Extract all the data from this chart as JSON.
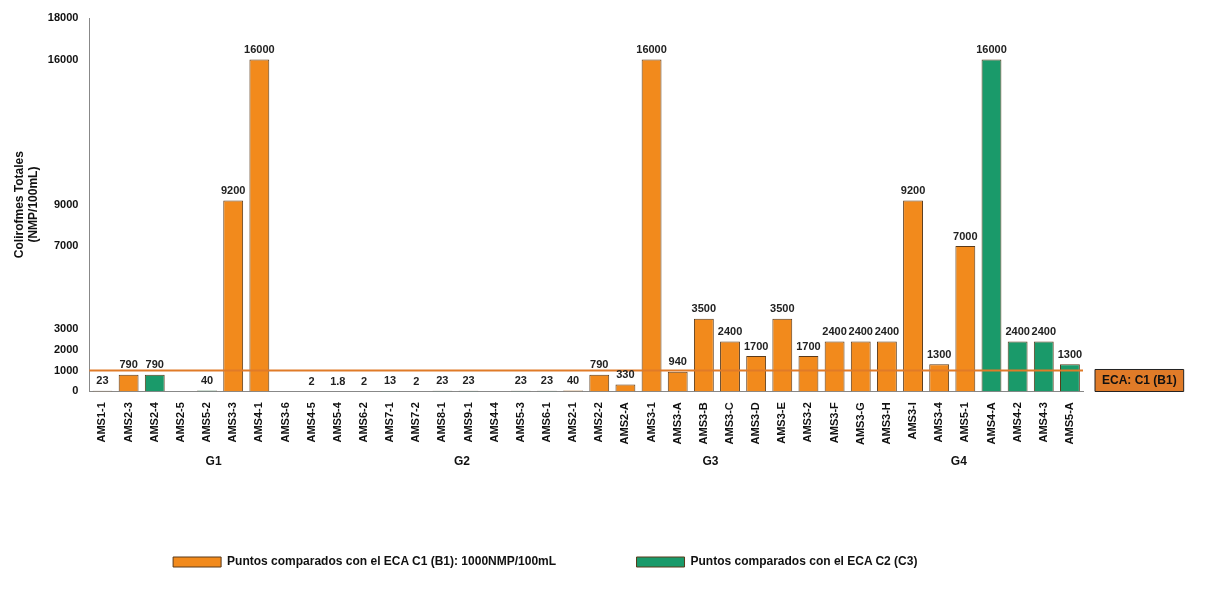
{
  "chart_data": {
    "type": "bar",
    "ylabel": "Colirofmes Totales\n(NMP/100mL)",
    "categories": [
      "AMS1-1",
      "AMS2-3",
      "AMS2-4",
      "AMS2-5",
      "AMS5-2",
      "AMS3-3",
      "AMS4-1",
      "AMS3-6",
      "AMS4-5",
      "AMS5-4",
      "AMS6-2",
      "AMS7-1",
      "AMS7-2",
      "AMS8-1",
      "AMS9-1",
      "AMS4-4",
      "AMS5-3",
      "AMS6-1",
      "AMS2-1",
      "AMS2-2",
      "AMS2-A",
      "AMS3-1",
      "AMS3-A",
      "AMS3-B",
      "AMS3-C",
      "AMS3-D",
      "AMS3-E",
      "AMS3-2",
      "AMS3-F",
      "AMS3-G",
      "AMS3-H",
      "AMS3-I",
      "AMS3-4",
      "AMS5-1",
      "AMS4-A",
      "AMS4-2",
      "AMS4-3",
      "AMS5-A"
    ],
    "series": [
      {
        "name": "Puntos comparados con el ECA C1 (B1): 1000NMP/100mL",
        "color": "#f28a1c",
        "values": [
          23,
          790,
          null,
          null,
          null,
          9200,
          16000,
          null,
          null,
          null,
          null,
          null,
          null,
          null,
          null,
          null,
          null,
          null,
          40,
          790,
          330,
          16000,
          940,
          3500,
          2400,
          1700,
          3500,
          1700,
          2400,
          2400,
          2400,
          9200,
          1300,
          7000,
          null,
          null,
          null,
          null
        ]
      },
      {
        "name": "Puntos comparados con el ECA C2 (C3)",
        "color": "#1a9a6a",
        "values": [
          null,
          null,
          790,
          null,
          40,
          null,
          null,
          null,
          2,
          1.8,
          2,
          13,
          2,
          23,
          23,
          null,
          23,
          23,
          null,
          null,
          null,
          null,
          null,
          null,
          null,
          null,
          null,
          null,
          null,
          null,
          null,
          null,
          null,
          null,
          16000,
          2400,
          2400,
          1300
        ]
      }
    ],
    "ylim": [
      0,
      18000
    ],
    "yticks": [
      0,
      1000,
      2000,
      3000,
      7000,
      9000,
      16000,
      18000
    ],
    "ref_lines": [
      {
        "axis": "y",
        "value": 1000,
        "label": "ECA: C1 (B1)",
        "color": "#e07b28"
      }
    ],
    "annotations": [
      "G1",
      "G2",
      "G3",
      "G4"
    ],
    "data_labels": true,
    "grid": false,
    "legend": "bottom"
  }
}
